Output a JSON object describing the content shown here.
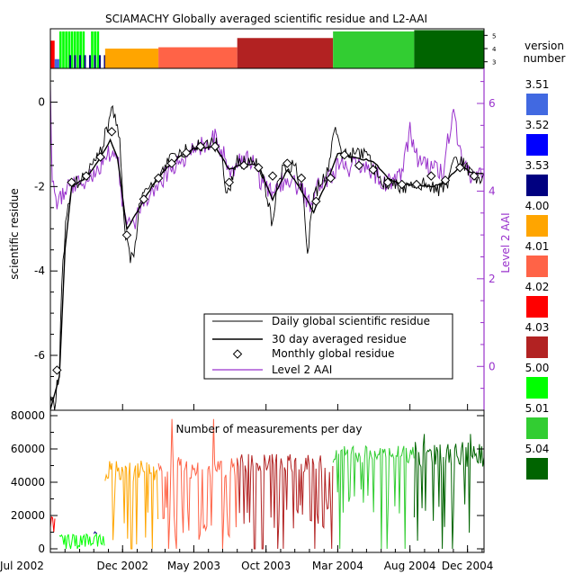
{
  "title": "SCIAMACHY Globally averaged scientific residue and L2-AAI",
  "version_legend": {
    "title_line1": "version",
    "title_line2": "number",
    "items": [
      {
        "label": "3.51",
        "color": "#4169E1"
      },
      {
        "label": "3.52",
        "color": "#0000FF"
      },
      {
        "label": "3.53",
        "color": "#000080"
      },
      {
        "label": "4.00",
        "color": "#FFA500"
      },
      {
        "label": "4.01",
        "color": "#FF6347"
      },
      {
        "label": "4.02",
        "color": "#FF0000"
      },
      {
        "label": "4.03",
        "color": "#B22222"
      },
      {
        "label": "5.00",
        "color": "#00FF00"
      },
      {
        "label": "5.01",
        "color": "#32CD32"
      },
      {
        "label": "5.04",
        "color": "#006400"
      }
    ]
  },
  "x_axis": {
    "ticks": [
      "Jul 2002",
      "Dec 2002",
      "May 2003",
      "Oct 2003",
      "Mar 2004",
      "Aug 2004",
      "Dec 2004"
    ]
  },
  "chart_data": [
    {
      "type": "bar",
      "name": "version strip",
      "y_ticks": [
        "3",
        "4",
        "5"
      ],
      "ylim": [
        2.5,
        5.5
      ],
      "segments": [
        {
          "start": "2002-07-01",
          "end": "2002-07-10",
          "version": "4.02",
          "level": 4.6
        },
        {
          "start": "2002-07-10",
          "end": "2002-07-20",
          "version": "3.51",
          "level": 3.2
        },
        {
          "start": "2002-07-20",
          "end": "2002-10-25",
          "version": "5.00",
          "level": 5.3
        },
        {
          "start": "2002-08-10",
          "end": "2002-10-25",
          "version": "3.53",
          "level": 3.5
        },
        {
          "start": "2002-10-25",
          "end": "2003-02-15",
          "version": "4.00",
          "level": 4.0
        },
        {
          "start": "2003-02-15",
          "end": "2003-08-01",
          "version": "4.01",
          "level": 4.1
        },
        {
          "start": "2003-08-01",
          "end": "2004-02-20",
          "version": "4.03",
          "level": 4.8
        },
        {
          "start": "2004-02-20",
          "end": "2004-08-10",
          "version": "5.01",
          "level": 5.3
        },
        {
          "start": "2004-08-10",
          "end": "2005-01-05",
          "version": "5.04",
          "level": 5.4
        }
      ]
    },
    {
      "type": "line",
      "name": "main",
      "ylabel_left": "scientific residue",
      "ylabel_right": "Level 2 AAI",
      "ylim_left": [
        -7.3,
        0.8
      ],
      "yticks_left": [
        0,
        -2,
        -4,
        -6
      ],
      "ylim_right": [
        -1.0,
        6.8
      ],
      "yticks_right": [
        6,
        4,
        2,
        0
      ],
      "legend": {
        "placement": "lower-right",
        "entries": [
          "Daily global scientific residue",
          "30 day averaged residue",
          "Monthly global residue",
          "Level 2 AAI"
        ]
      },
      "series": [
        {
          "name": "Daily global scientific residue",
          "color": "#000000",
          "axis": "left",
          "points": [
            [
              "2002-07-01",
              -7.1
            ],
            [
              "2002-07-10",
              -7.2
            ],
            [
              "2002-07-20",
              -6.3
            ],
            [
              "2002-07-25",
              -4.2
            ],
            [
              "2002-08-05",
              -2.6
            ],
            [
              "2002-08-20",
              -1.9
            ],
            [
              "2002-09-10",
              -1.8
            ],
            [
              "2002-10-01",
              -1.5
            ],
            [
              "2002-10-15",
              -1.2
            ],
            [
              "2002-10-25",
              -0.8
            ],
            [
              "2002-11-05",
              -0.3
            ],
            [
              "2002-11-15",
              -0.2
            ],
            [
              "2002-11-25",
              -1.0
            ],
            [
              "2002-12-05",
              -3.0
            ],
            [
              "2002-12-15",
              -3.6
            ],
            [
              "2002-12-25",
              -3.8
            ],
            [
              "2003-01-05",
              -2.5
            ],
            [
              "2003-01-20",
              -2.1
            ],
            [
              "2003-02-10",
              -1.9
            ],
            [
              "2003-03-01",
              -1.5
            ],
            [
              "2003-04-01",
              -1.2
            ],
            [
              "2003-05-01",
              -1.05
            ],
            [
              "2003-06-01",
              -1.0
            ],
            [
              "2003-06-20",
              -1.0
            ],
            [
              "2003-07-01",
              -1.5
            ],
            [
              "2003-07-10",
              -2.3
            ],
            [
              "2003-07-20",
              -1.8
            ],
            [
              "2003-08-01",
              -1.4
            ],
            [
              "2003-09-01",
              -1.4
            ],
            [
              "2003-09-20",
              -1.6
            ],
            [
              "2003-10-01",
              -2.1
            ],
            [
              "2003-10-15",
              -2.9
            ],
            [
              "2003-10-25",
              -1.8
            ],
            [
              "2003-11-10",
              -1.5
            ],
            [
              "2003-12-01",
              -1.5
            ],
            [
              "2003-12-20",
              -2.2
            ],
            [
              "2003-12-28",
              -3.7
            ],
            [
              "2004-01-05",
              -2.5
            ],
            [
              "2004-01-20",
              -2.0
            ],
            [
              "2004-02-10",
              -1.6
            ],
            [
              "2004-02-25",
              -0.6
            ],
            [
              "2004-03-05",
              -1.1
            ],
            [
              "2004-03-20",
              -1.3
            ],
            [
              "2004-04-15",
              -1.2
            ],
            [
              "2004-05-01",
              -1.2
            ],
            [
              "2004-06-01",
              -1.9
            ],
            [
              "2004-07-01",
              -2.0
            ],
            [
              "2004-08-01",
              -2.0
            ],
            [
              "2004-09-01",
              -1.9
            ],
            [
              "2004-10-01",
              -2.1
            ],
            [
              "2004-10-20",
              -1.9
            ],
            [
              "2004-11-05",
              -1.4
            ],
            [
              "2004-11-20",
              -1.4
            ],
            [
              "2004-12-05",
              -1.6
            ],
            [
              "2004-12-20",
              -1.8
            ],
            [
              "2005-01-05",
              -1.7
            ]
          ]
        },
        {
          "name": "30 day averaged residue",
          "color": "#000000",
          "axis": "left",
          "points": [
            [
              "2002-07-01",
              -7.3
            ],
            [
              "2002-07-20",
              -6.5
            ],
            [
              "2002-08-01",
              -3.5
            ],
            [
              "2002-08-15",
              -2.0
            ],
            [
              "2002-09-15",
              -1.8
            ],
            [
              "2002-10-15",
              -1.3
            ],
            [
              "2002-11-05",
              -0.9
            ],
            [
              "2002-11-20",
              -1.3
            ],
            [
              "2002-12-10",
              -3.0
            ],
            [
              "2003-01-01",
              -2.6
            ],
            [
              "2003-02-01",
              -2.0
            ],
            [
              "2003-03-01",
              -1.6
            ],
            [
              "2003-04-01",
              -1.3
            ],
            [
              "2003-05-01",
              -1.1
            ],
            [
              "2003-06-15",
              -1.05
            ],
            [
              "2003-07-15",
              -1.6
            ],
            [
              "2003-08-15",
              -1.45
            ],
            [
              "2003-09-15",
              -1.5
            ],
            [
              "2003-10-15",
              -2.3
            ],
            [
              "2003-11-15",
              -1.6
            ],
            [
              "2003-12-15",
              -2.1
            ],
            [
              "2004-01-10",
              -2.6
            ],
            [
              "2004-02-10",
              -1.8
            ],
            [
              "2004-03-01",
              -1.2
            ],
            [
              "2004-04-01",
              -1.3
            ],
            [
              "2004-05-15",
              -1.4
            ],
            [
              "2004-06-15",
              -1.8
            ],
            [
              "2004-07-15",
              -1.95
            ],
            [
              "2004-08-15",
              -1.95
            ],
            [
              "2004-09-15",
              -2.0
            ],
            [
              "2004-10-15",
              -1.9
            ],
            [
              "2004-11-15",
              -1.5
            ],
            [
              "2004-12-15",
              -1.7
            ],
            [
              "2005-01-05",
              -1.7
            ]
          ]
        },
        {
          "name": "Monthly global residue",
          "color": "#000000",
          "axis": "left",
          "marker": "diamond",
          "points": [
            [
              "2002-07-15",
              -6.35
            ],
            [
              "2002-08-15",
              -1.9
            ],
            [
              "2002-09-15",
              -1.75
            ],
            [
              "2002-10-15",
              -1.3
            ],
            [
              "2002-11-08",
              -0.7
            ],
            [
              "2002-12-10",
              -3.15
            ],
            [
              "2003-01-15",
              -2.3
            ],
            [
              "2003-02-15",
              -1.8
            ],
            [
              "2003-03-15",
              -1.45
            ],
            [
              "2003-04-15",
              -1.2
            ],
            [
              "2003-05-15",
              -1.05
            ],
            [
              "2003-06-15",
              -1.05
            ],
            [
              "2003-07-15",
              -1.9
            ],
            [
              "2003-08-15",
              -1.5
            ],
            [
              "2003-09-15",
              -1.55
            ],
            [
              "2003-10-15",
              -1.75
            ],
            [
              "2003-11-15",
              -1.45
            ],
            [
              "2003-12-15",
              -1.8
            ],
            [
              "2004-01-15",
              -2.35
            ],
            [
              "2004-02-15",
              -1.8
            ],
            [
              "2004-03-15",
              -1.25
            ],
            [
              "2004-04-15",
              -1.5
            ],
            [
              "2004-05-15",
              -1.6
            ],
            [
              "2004-06-15",
              -1.9
            ],
            [
              "2004-07-15",
              -1.95
            ],
            [
              "2004-08-15",
              -1.95
            ],
            [
              "2004-09-15",
              -1.75
            ],
            [
              "2004-10-15",
              -1.85
            ],
            [
              "2004-11-15",
              -1.55
            ],
            [
              "2004-12-15",
              -1.75
            ]
          ]
        },
        {
          "name": "Level 2 AAI",
          "color": "#9932CC",
          "axis": "right",
          "points": [
            [
              "2002-07-01",
              6.3
            ],
            [
              "2002-07-05",
              4.2
            ],
            [
              "2002-07-15",
              3.8
            ],
            [
              "2002-08-01",
              4.0
            ],
            [
              "2002-09-01",
              4.2
            ],
            [
              "2002-10-01",
              4.4
            ],
            [
              "2002-11-01",
              4.9
            ],
            [
              "2002-11-20",
              4.8
            ],
            [
              "2002-12-05",
              3.4
            ],
            [
              "2002-12-20",
              3.2
            ],
            [
              "2003-01-15",
              3.7
            ],
            [
              "2003-02-15",
              4.2
            ],
            [
              "2003-03-15",
              4.5
            ],
            [
              "2003-04-15",
              4.8
            ],
            [
              "2003-05-15",
              5.0
            ],
            [
              "2003-06-15",
              5.2
            ],
            [
              "2003-07-01",
              4.9
            ],
            [
              "2003-07-15",
              4.3
            ],
            [
              "2003-08-01",
              4.7
            ],
            [
              "2003-09-01",
              4.7
            ],
            [
              "2003-09-20",
              4.2
            ],
            [
              "2003-10-10",
              4.0
            ],
            [
              "2003-11-01",
              4.2
            ],
            [
              "2003-11-20",
              4.3
            ],
            [
              "2003-12-15",
              4.0
            ],
            [
              "2004-01-05",
              3.7
            ],
            [
              "2004-01-20",
              4.1
            ],
            [
              "2004-02-15",
              4.3
            ],
            [
              "2004-03-01",
              4.6
            ],
            [
              "2004-03-20",
              4.5
            ],
            [
              "2004-04-15",
              4.6
            ],
            [
              "2004-05-15",
              4.4
            ],
            [
              "2004-06-15",
              4.2
            ],
            [
              "2004-07-10",
              4.3
            ],
            [
              "2004-07-20",
              4.6
            ],
            [
              "2004-08-01",
              5.4
            ],
            [
              "2004-08-20",
              4.6
            ],
            [
              "2004-09-15",
              4.5
            ],
            [
              "2004-10-10",
              4.4
            ],
            [
              "2004-10-30",
              5.8
            ],
            [
              "2004-11-20",
              4.7
            ],
            [
              "2004-12-10",
              4.3
            ],
            [
              "2005-01-05",
              4.4
            ]
          ]
        }
      ]
    },
    {
      "type": "line",
      "name": "measurements",
      "title": "Number of measurements per day",
      "ylim": [
        0,
        80000
      ],
      "yticks": [
        0,
        20000,
        40000,
        60000,
        80000
      ],
      "series_by_version": [
        {
          "version": "4.02",
          "color": "#FF0000",
          "start": "2002-07-01",
          "end": "2002-07-12",
          "high": 20000,
          "low": 9000
        },
        {
          "version": "5.00",
          "color": "#00FF00",
          "start": "2002-07-20",
          "end": "2002-10-25",
          "high": 9000,
          "low": 500
        },
        {
          "version": "3.53",
          "color": "#000080",
          "start": "2002-10-01",
          "end": "2002-10-10",
          "high": 11000,
          "low": 2000
        },
        {
          "version": "4.00",
          "color": "#FFA500",
          "start": "2002-10-25",
          "end": "2003-02-15",
          "high": 53000,
          "low": 2000
        },
        {
          "version": "4.01",
          "color": "#FF6347",
          "start": "2003-02-15",
          "end": "2003-08-01",
          "high": 55000,
          "low": 5000
        },
        {
          "version": "4.03",
          "color": "#B22222",
          "start": "2003-08-01",
          "end": "2004-02-20",
          "high": 57000,
          "low": 12000
        },
        {
          "version": "5.01",
          "color": "#32CD32",
          "start": "2004-02-20",
          "end": "2004-08-10",
          "high": 62000,
          "low": 20000
        },
        {
          "version": "5.04",
          "color": "#006400",
          "start": "2004-08-10",
          "end": "2005-01-05",
          "high": 65000,
          "low": 2000
        }
      ]
    }
  ]
}
